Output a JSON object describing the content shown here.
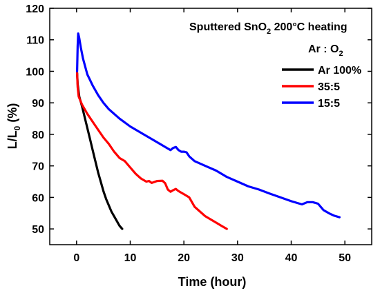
{
  "chart_data": {
    "type": "line",
    "title_main": "Sputtered SnO",
    "title_sub": "2",
    "title_rest": " 200°C heating",
    "legend_title_main": "Ar : O",
    "legend_title_sub": "2",
    "xlabel": "Time (hour)",
    "ylabel_main": "L/L",
    "ylabel_sub": "0",
    "ylabel_rest": " (%)",
    "xlim": [
      -5,
      55
    ],
    "ylim": [
      45,
      120
    ],
    "x_ticks": [
      0,
      10,
      20,
      30,
      40,
      50
    ],
    "y_ticks": [
      50,
      60,
      70,
      80,
      90,
      100,
      110,
      120
    ],
    "series": [
      {
        "name": "Ar 100%",
        "color": "#000000",
        "points": [
          [
            0.1,
            99.5
          ],
          [
            0.2,
            96
          ],
          [
            0.5,
            92
          ],
          [
            1,
            89
          ],
          [
            1.5,
            85.5
          ],
          [
            2,
            82
          ],
          [
            2.5,
            78.5
          ],
          [
            3,
            75
          ],
          [
            3.5,
            71.5
          ],
          [
            4,
            68
          ],
          [
            4.5,
            65
          ],
          [
            5,
            62
          ],
          [
            5.5,
            59.5
          ],
          [
            6,
            57.5
          ],
          [
            6.5,
            55.5
          ],
          [
            7,
            54
          ],
          [
            7.5,
            52.5
          ],
          [
            8,
            51
          ],
          [
            8.5,
            50
          ]
        ]
      },
      {
        "name": "35:5",
        "color": "#ff0000",
        "points": [
          [
            0.1,
            99.5
          ],
          [
            0.2,
            95
          ],
          [
            0.4,
            92
          ],
          [
            1,
            89.5
          ],
          [
            2,
            86.5
          ],
          [
            3,
            84
          ],
          [
            4,
            81.5
          ],
          [
            5,
            79
          ],
          [
            6,
            77
          ],
          [
            7,
            74.5
          ],
          [
            8,
            72.5
          ],
          [
            9,
            71.5
          ],
          [
            10,
            69.5
          ],
          [
            11,
            67.5
          ],
          [
            12,
            66
          ],
          [
            13,
            65
          ],
          [
            13.5,
            65.2
          ],
          [
            14,
            64.6
          ],
          [
            15,
            65.2
          ],
          [
            16,
            65.3
          ],
          [
            16.5,
            64.5
          ],
          [
            17,
            62.5
          ],
          [
            17.5,
            61.8
          ],
          [
            18,
            62.3
          ],
          [
            18.5,
            62.7
          ],
          [
            19,
            62
          ],
          [
            20,
            61
          ],
          [
            21,
            60
          ],
          [
            22,
            57
          ],
          [
            23,
            55.5
          ],
          [
            24,
            54
          ],
          [
            25,
            53
          ],
          [
            26,
            52
          ],
          [
            27,
            51
          ],
          [
            28,
            50
          ]
        ]
      },
      {
        "name": "15:5",
        "color": "#0000ff",
        "points": [
          [
            0.1,
            100
          ],
          [
            0.2,
            108
          ],
          [
            0.3,
            112
          ],
          [
            0.5,
            110.5
          ],
          [
            0.8,
            107.5
          ],
          [
            1.2,
            104
          ],
          [
            2,
            99
          ],
          [
            3,
            95.5
          ],
          [
            4,
            92.5
          ],
          [
            5,
            90
          ],
          [
            6,
            88
          ],
          [
            8,
            85
          ],
          [
            10,
            82.5
          ],
          [
            12,
            80.5
          ],
          [
            14,
            78.5
          ],
          [
            16,
            76.5
          ],
          [
            17,
            75.5
          ],
          [
            17.5,
            75
          ],
          [
            18,
            75.7
          ],
          [
            18.5,
            76
          ],
          [
            19,
            75
          ],
          [
            19.5,
            74.5
          ],
          [
            20,
            74.5
          ],
          [
            20.5,
            74.3
          ],
          [
            21,
            73
          ],
          [
            22,
            71.5
          ],
          [
            24,
            70
          ],
          [
            26,
            68.5
          ],
          [
            28,
            66.5
          ],
          [
            30,
            65
          ],
          [
            32,
            63.5
          ],
          [
            34,
            62.5
          ],
          [
            36,
            61.2
          ],
          [
            38,
            60
          ],
          [
            40,
            58.8
          ],
          [
            42,
            57.8
          ],
          [
            43,
            58.5
          ],
          [
            44,
            58.5
          ],
          [
            45,
            58
          ],
          [
            46,
            56
          ],
          [
            47,
            55
          ],
          [
            48,
            54.2
          ],
          [
            49,
            53.7
          ]
        ]
      }
    ]
  }
}
